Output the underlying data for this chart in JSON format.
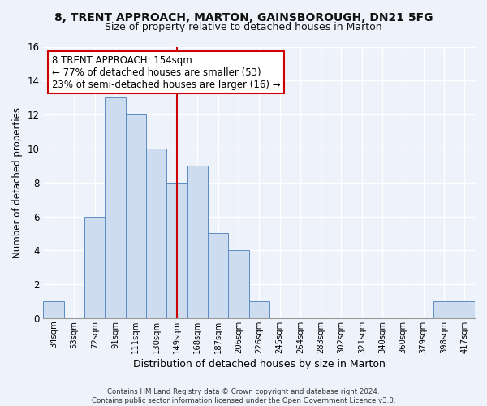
{
  "title": "8, TRENT APPROACH, MARTON, GAINSBOROUGH, DN21 5FG",
  "subtitle": "Size of property relative to detached houses in Marton",
  "xlabel": "Distribution of detached houses by size in Marton",
  "ylabel": "Number of detached properties",
  "bar_labels": [
    "34sqm",
    "53sqm",
    "72sqm",
    "91sqm",
    "111sqm",
    "130sqm",
    "149sqm",
    "168sqm",
    "187sqm",
    "206sqm",
    "226sqm",
    "245sqm",
    "264sqm",
    "283sqm",
    "302sqm",
    "321sqm",
    "340sqm",
    "360sqm",
    "379sqm",
    "398sqm",
    "417sqm"
  ],
  "bar_values": [
    1,
    0,
    6,
    13,
    12,
    10,
    8,
    9,
    5,
    4,
    1,
    0,
    0,
    0,
    0,
    0,
    0,
    0,
    0,
    1,
    1
  ],
  "bar_color": "#cddcee",
  "bar_edge_color": "#5a8ac6",
  "vline_idx": 6,
  "vline_color": "#cc0000",
  "ylim": [
    0,
    16
  ],
  "yticks": [
    0,
    2,
    4,
    6,
    8,
    10,
    12,
    14,
    16
  ],
  "annotation_title": "8 TRENT APPROACH: 154sqm",
  "annotation_line1": "← 77% of detached houses are smaller (53)",
  "annotation_line2": "23% of semi-detached houses are larger (16) →",
  "annotation_box_color": "#ffffff",
  "annotation_box_edge": "#cc0000",
  "footer_line1": "Contains HM Land Registry data © Crown copyright and database right 2024.",
  "footer_line2": "Contains public sector information licensed under the Open Government Licence v3.0.",
  "background_color": "#eef2fa",
  "title_fontsize": 10,
  "subtitle_fontsize": 9
}
